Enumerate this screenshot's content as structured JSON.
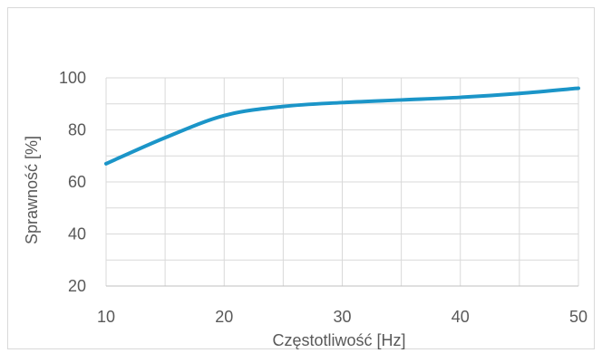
{
  "chart_data": {
    "type": "line",
    "title": "",
    "xlabel": "Częstotliwość [Hz]",
    "ylabel": "Sprawność [%]",
    "xlim": [
      10,
      50
    ],
    "ylim": [
      20,
      100
    ],
    "x_ticks": [
      10,
      20,
      30,
      40,
      50
    ],
    "y_ticks": [
      20,
      40,
      60,
      80,
      100
    ],
    "x_tick_labels": [
      "10",
      "20",
      "30",
      "40",
      "50"
    ],
    "y_tick_labels": [
      "20",
      "40",
      "60",
      "80",
      "100"
    ],
    "grid": true,
    "legend": false,
    "series": [
      {
        "color": "#1b95c8",
        "x": [
          10,
          15,
          20,
          25,
          30,
          35,
          40,
          45,
          50
        ],
        "y": [
          67,
          77,
          85.5,
          89,
          90.5,
          91.5,
          92.5,
          94,
          96
        ]
      }
    ]
  }
}
